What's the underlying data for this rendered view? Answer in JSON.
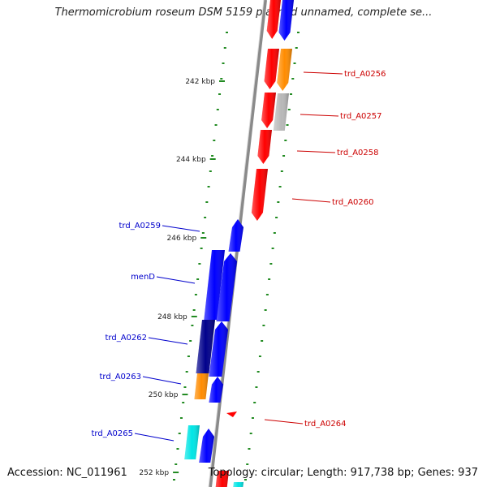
{
  "title": "Thermomicrobium roseum DSM 5159 plasmid unnamed, complete se...",
  "footer": {
    "accession_label": "Accession: NC_011961",
    "summary_label": "Topology: circular; Length: 917,738 bp; Genes: 937"
  },
  "colors": {
    "red": "#ff0000",
    "blue": "#0000ff",
    "dark_blue": "#00008b",
    "orange": "#ff8c00",
    "gray": "#b8b8b8",
    "cyan": "#00e5e5",
    "ticks": "#228b22",
    "backbone": "#8a8a8a",
    "label_red": "#cc0000",
    "label_blue": "#0000cc"
  },
  "scale_labels": [
    "242 kbp",
    "244 kbp",
    "246 kbp",
    "248 kbp",
    "250 kbp",
    "252 kbp"
  ],
  "forward_strand_labels": [
    "trd_A0256",
    "trd_A0257",
    "trd_A0258",
    "trd_A0260",
    "trd_A0264"
  ],
  "reverse_strand_labels": [
    "trd_A0259",
    "menD",
    "trd_A0262",
    "trd_A0263",
    "trd_A0265"
  ]
}
